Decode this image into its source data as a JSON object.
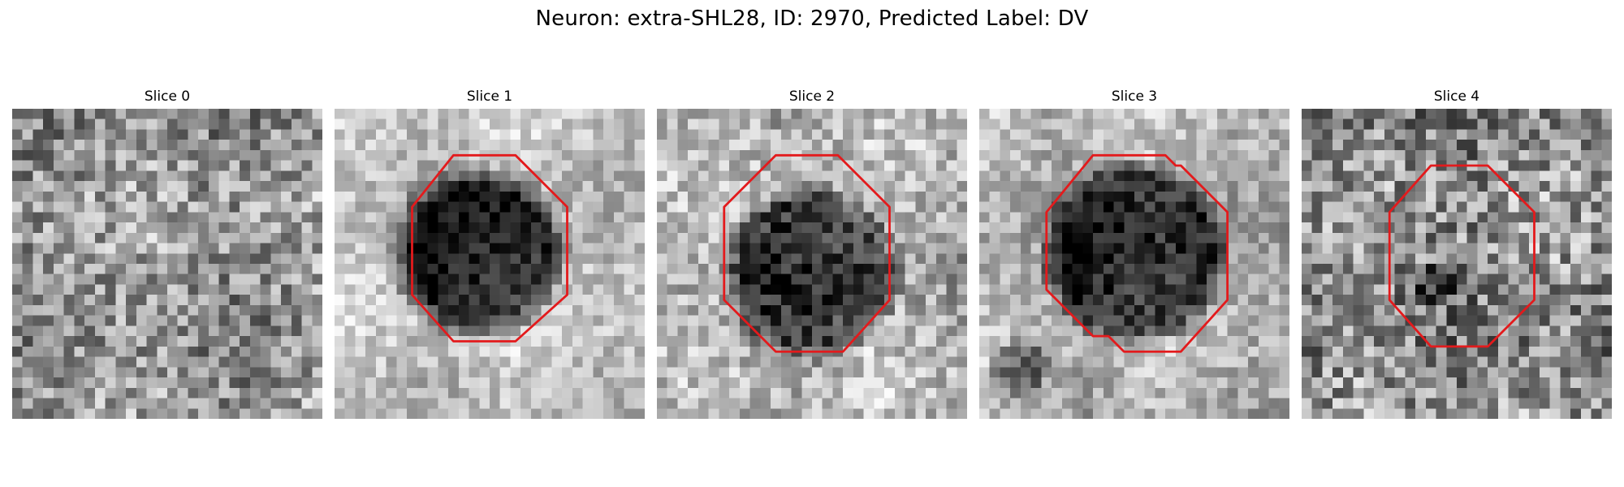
{
  "figure": {
    "title": "Neuron: extra-SHL28, ID: 2970, Predicted Label: DV"
  },
  "panels": [
    {
      "label": "Slice 0",
      "outline": false,
      "seed": 11,
      "base": 150,
      "noise": 70,
      "blobs": []
    },
    {
      "label": "Slice 1",
      "outline": true,
      "seed": 23,
      "base": 195,
      "noise": 40,
      "blobs": [
        {
          "cx": 14,
          "cy": 14,
          "r": 6.5,
          "depth": 160,
          "soft": 2.5
        }
      ]
    },
    {
      "label": "Slice 2",
      "outline": true,
      "seed": 37,
      "base": 175,
      "noise": 55,
      "blobs": [
        {
          "cx": 15,
          "cy": 16,
          "r": 7,
          "depth": 110,
          "soft": 2
        }
      ]
    },
    {
      "label": "Slice 3",
      "outline": true,
      "seed": 41,
      "base": 175,
      "noise": 45,
      "blobs": [
        {
          "cx": 15,
          "cy": 14,
          "r": 7.5,
          "depth": 130,
          "soft": 2
        },
        {
          "cx": 4,
          "cy": 25,
          "r": 2,
          "depth": 90,
          "soft": 1
        }
      ]
    },
    {
      "label": "Slice 4",
      "outline": true,
      "seed": 53,
      "base": 140,
      "noise": 80,
      "blobs": [
        {
          "cx": 13,
          "cy": 17,
          "r": 1.5,
          "depth": 50,
          "soft": 1
        }
      ]
    }
  ],
  "colors": {
    "outline": "#e31a1c"
  }
}
